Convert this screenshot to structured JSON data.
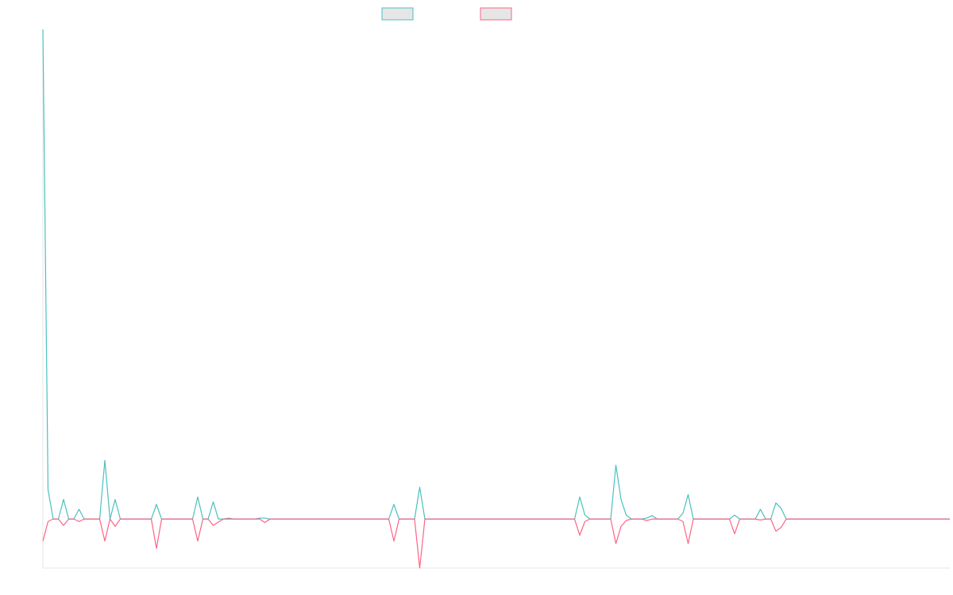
{
  "colors": {
    "series_a": "#4bc0c0",
    "series_b": "#ff6384",
    "legend_fill": "#e6e6e6",
    "axis": "#e6e6e6",
    "background": "#ffffff"
  },
  "chart_data": {
    "type": "line",
    "title": "",
    "xlabel": "",
    "ylabel": "",
    "legend": {
      "position": "top",
      "entries": [
        "",
        ""
      ]
    },
    "grid": false,
    "ylim": [
      -10,
      100
    ],
    "series": [
      {
        "color": "#4bc0c0",
        "values": [
          100,
          6,
          0,
          0,
          4,
          0,
          0,
          2,
          0,
          0,
          0,
          0,
          12,
          0,
          4,
          0,
          0,
          0,
          0,
          0,
          0,
          0,
          3,
          0,
          0,
          0,
          0,
          0,
          0,
          0,
          4.5,
          0,
          0,
          3.5,
          0,
          0,
          0.2,
          0,
          0,
          0,
          0,
          0,
          0.2,
          0.2,
          0,
          0,
          0,
          0,
          0,
          0,
          0,
          0,
          0,
          0,
          0,
          0,
          0,
          0,
          0,
          0,
          0,
          0,
          0,
          0,
          0,
          0,
          0,
          0,
          3,
          0,
          0,
          0,
          0,
          6.5,
          0,
          0,
          0,
          0,
          0,
          0,
          0,
          0,
          0,
          0,
          0,
          0,
          0,
          0,
          0,
          0,
          0,
          0,
          0,
          0,
          0,
          0,
          0,
          0,
          0,
          0,
          0,
          0,
          0,
          0,
          4.5,
          0.8,
          0,
          0,
          0,
          0,
          0,
          11,
          4,
          0.8,
          0,
          0,
          0,
          0.2,
          0.7,
          0,
          0,
          0,
          0,
          0,
          1.2,
          5,
          0,
          0,
          0,
          0,
          0,
          0,
          0,
          0,
          0.8,
          0,
          0,
          0,
          0,
          2,
          0,
          0,
          3.3,
          2.2,
          0,
          0,
          0,
          0,
          0,
          0,
          0,
          0,
          0,
          0,
          0,
          0,
          0,
          0,
          0,
          0,
          0,
          0,
          0,
          0,
          0,
          0,
          0,
          0,
          0,
          0,
          0,
          0,
          0,
          0,
          0,
          0,
          0,
          0,
          0,
          0,
          0,
          0
        ]
      },
      {
        "color": "#ff6384",
        "values": [
          -4.5,
          -0.5,
          0,
          0,
          -1.3,
          0,
          0,
          -0.5,
          0,
          0,
          0,
          0,
          -4.5,
          0,
          -1.5,
          0,
          0,
          0,
          0,
          0,
          0,
          0,
          -6,
          0,
          0,
          0,
          0,
          0,
          0,
          0,
          -4.5,
          0,
          0,
          -1.3,
          -0.6,
          0,
          0,
          0,
          0,
          0,
          0,
          0,
          0,
          -0.7,
          0,
          0,
          0,
          0,
          0,
          0,
          0,
          0,
          0,
          0,
          0,
          0,
          0,
          0,
          0,
          0,
          0,
          0,
          0,
          0,
          0,
          0,
          0,
          0,
          -4.5,
          0,
          0,
          0,
          0,
          -10,
          0,
          0,
          0,
          0,
          0,
          0,
          0,
          0,
          0,
          0,
          0,
          0,
          0,
          0,
          0,
          0,
          0,
          0,
          0,
          0,
          0,
          0,
          0,
          0,
          0,
          0,
          0,
          0,
          0,
          0,
          -3.3,
          -0.5,
          0,
          0,
          0,
          0,
          0,
          -5,
          -1.5,
          -0.3,
          0,
          0,
          0,
          -0.3,
          0,
          0,
          0,
          0,
          0,
          0,
          -0.5,
          -5,
          0,
          0,
          0,
          0,
          0,
          0,
          0,
          0,
          -3,
          0,
          0,
          0,
          0,
          -0.2,
          0,
          0,
          -2.5,
          -1.7,
          0,
          0,
          0,
          0,
          0,
          0,
          0,
          0,
          0,
          0,
          0,
          0,
          0,
          0,
          0,
          0,
          0,
          0,
          0,
          0,
          0,
          0,
          0,
          0,
          0,
          0,
          0,
          0,
          0,
          0,
          0,
          0,
          0,
          0,
          0,
          0,
          0,
          0
        ]
      }
    ]
  }
}
